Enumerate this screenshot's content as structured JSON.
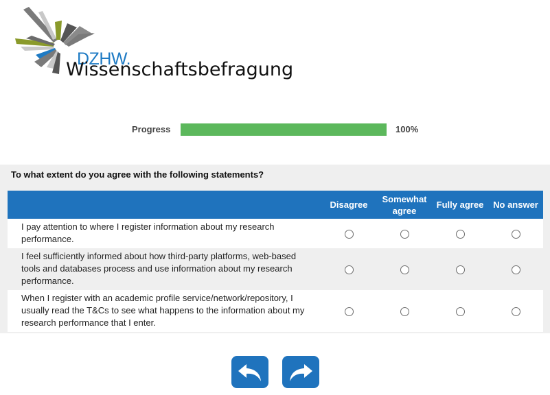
{
  "logo": {
    "brand": "DZHW.",
    "subtitle": "Wissenschaftsbefragung",
    "colors": {
      "blue": "#1f7bc4",
      "olive": "#8a9a2b",
      "gray": "#7a7a7a",
      "lightgray": "#c8c8c8"
    }
  },
  "progress": {
    "label": "Progress",
    "value_text": "100%",
    "fraction": 1.0,
    "color": "#5cb85c"
  },
  "question": {
    "text": "To what extent do you agree with the following statements?",
    "columns": [
      "Disagree",
      "Somewhat agree",
      "Fully agree",
      "No answer"
    ],
    "rows": [
      "I pay attention to where I register information about my research performance.",
      "I feel sufficiently informed about how third-party platforms, web-based tools and databases process and use information about my research performance.",
      "When I register with an academic profile service/network/repository, I usually read the T&Cs to see what happens to the information about my research performance that I enter."
    ],
    "header_color": "#1f73bd"
  },
  "nav": {
    "back_icon": "back-arrow-icon",
    "next_icon": "forward-arrow-icon",
    "color": "#1f73bd"
  }
}
